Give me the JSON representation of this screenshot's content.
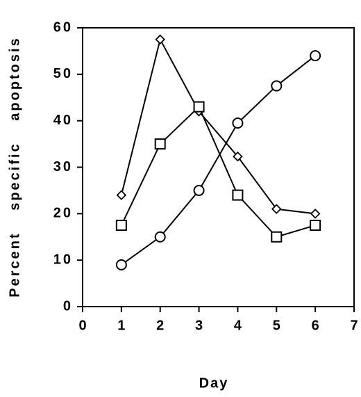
{
  "chart_data": {
    "type": "line",
    "x_label": "Day",
    "y_label": "Percent specific apoptosis",
    "x": [
      1,
      2,
      3,
      4,
      5,
      6
    ],
    "series": [
      {
        "color": "#000000",
        "marker": "diamond",
        "values": [
          24,
          57.5,
          42,
          32.3,
          21,
          20
        ]
      },
      {
        "color": "#000000",
        "marker": "square",
        "values": [
          17.5,
          35,
          43,
          24,
          15,
          17.5
        ]
      },
      {
        "color": "#000000",
        "marker": "circle",
        "values": [
          9,
          15,
          25,
          39.5,
          47.5,
          54
        ]
      }
    ],
    "xlim": [
      0,
      7
    ],
    "xticks": [
      0,
      1,
      2,
      3,
      4,
      5,
      6,
      7
    ],
    "ylim": [
      0,
      60
    ],
    "yticks": [
      0,
      10,
      20,
      30,
      40,
      50,
      60
    ]
  }
}
